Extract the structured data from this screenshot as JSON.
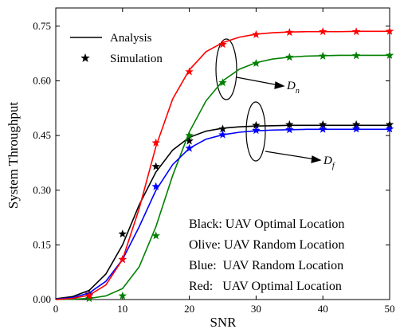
{
  "chart_data": {
    "type": "line",
    "xlabel": "SNR",
    "ylabel": "System Throughput",
    "xlim": [
      0,
      50
    ],
    "xticks": [
      0,
      10,
      20,
      30,
      40,
      50
    ],
    "ylim": [
      0,
      0.8
    ],
    "yticks": [
      {
        "value": 0,
        "label": "0.00"
      },
      {
        "value": 0.15,
        "label": "0.15"
      },
      {
        "value": 0.3,
        "label": "0.30"
      },
      {
        "value": 0.45,
        "label": "0.45"
      },
      {
        "value": 0.6,
        "label": "0.60"
      },
      {
        "value": 0.75,
        "label": "0.75"
      }
    ],
    "legend": [
      "Analysis",
      "Simulation"
    ],
    "x": [
      0,
      2.5,
      5,
      7.5,
      10,
      12.5,
      15,
      17.5,
      20,
      22.5,
      25,
      27.5,
      30,
      32.5,
      35,
      37.5,
      40,
      42.5,
      45,
      47.5,
      50
    ],
    "sim_x": [
      5,
      10,
      15,
      20,
      25,
      30,
      35,
      40,
      45,
      50
    ],
    "series": [
      {
        "color": "#000000",
        "values": [
          0.002,
          0.008,
          0.025,
          0.07,
          0.15,
          0.26,
          0.35,
          0.41,
          0.445,
          0.462,
          0.47,
          0.474,
          0.476,
          0.477,
          0.478,
          0.478,
          0.478,
          0.478,
          0.478,
          0.478,
          0.478
        ],
        "sim_values": [
          0.015,
          0.18,
          0.365,
          0.435,
          0.468,
          0.478,
          0.48,
          0.48,
          0.48,
          0.48
        ]
      },
      {
        "color": "#008000",
        "values": [
          0,
          0.001,
          0.003,
          0.01,
          0.03,
          0.09,
          0.2,
          0.34,
          0.46,
          0.545,
          0.6,
          0.632,
          0.65,
          0.66,
          0.665,
          0.668,
          0.669,
          0.67,
          0.67,
          0.67,
          0.67
        ],
        "sim_values": [
          0.003,
          0.01,
          0.175,
          0.45,
          0.595,
          0.648,
          0.665,
          0.668,
          0.669,
          0.67
        ]
      },
      {
        "color": "#0000ff",
        "values": [
          0.001,
          0.005,
          0.018,
          0.05,
          0.11,
          0.2,
          0.3,
          0.37,
          0.415,
          0.44,
          0.452,
          0.459,
          0.463,
          0.465,
          0.466,
          0.467,
          0.467,
          0.467,
          0.467,
          0.467,
          0.467
        ],
        "sim_values": [
          0.012,
          0.11,
          0.31,
          0.415,
          0.452,
          0.464,
          0.466,
          0.467,
          0.468,
          0.468
        ]
      },
      {
        "color": "#ff0000",
        "values": [
          0,
          0.003,
          0.012,
          0.04,
          0.11,
          0.25,
          0.42,
          0.55,
          0.63,
          0.68,
          0.705,
          0.72,
          0.728,
          0.732,
          0.734,
          0.735,
          0.735,
          0.735,
          0.736,
          0.736,
          0.736
        ],
        "sim_values": [
          0.01,
          0.11,
          0.43,
          0.625,
          0.7,
          0.727,
          0.733,
          0.735,
          0.735,
          0.736
        ]
      }
    ],
    "annotations": [
      "Black: UAV Optimal Location",
      "Olive: UAV Random Location",
      "Blue:  UAV Random Location",
      "Red:   UAV Optimal Location"
    ],
    "group_labels": [
      {
        "text": "D",
        "sub": "n"
      },
      {
        "text": "D",
        "sub": "f"
      }
    ]
  }
}
